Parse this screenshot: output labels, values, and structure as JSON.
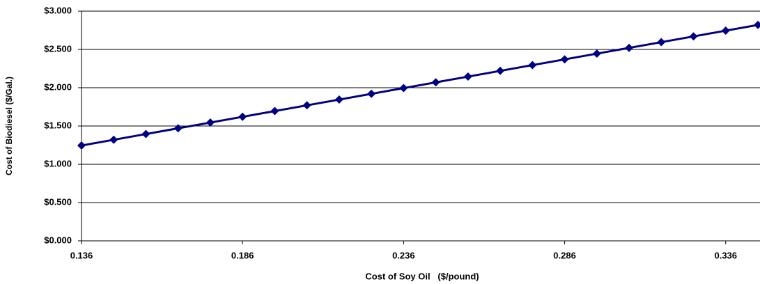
{
  "chart_data": {
    "type": "line",
    "x_label": "Cost of Soy Oil   ($/pound)",
    "y_label": "Cost of Biodiesel ($/Gal.)",
    "x": [
      0.136,
      0.146,
      0.156,
      0.166,
      0.176,
      0.186,
      0.196,
      0.206,
      0.216,
      0.226,
      0.236,
      0.246,
      0.256,
      0.266,
      0.276,
      0.286,
      0.296,
      0.306,
      0.316,
      0.326,
      0.336,
      0.346
    ],
    "values": [
      1.245,
      1.32,
      1.395,
      1.47,
      1.545,
      1.62,
      1.695,
      1.77,
      1.845,
      1.92,
      1.995,
      2.07,
      2.145,
      2.22,
      2.295,
      2.37,
      2.445,
      2.52,
      2.595,
      2.67,
      2.745,
      2.82
    ],
    "color": "#000080",
    "xlim": [
      0.136,
      0.346
    ],
    "xticks": [
      0.136,
      0.186,
      0.236,
      0.286,
      0.336
    ],
    "ylim": [
      0,
      3
    ],
    "yticks": [
      {
        "value": 0,
        "label": "$0.000"
      },
      {
        "value": 0.5,
        "label": "$0.500"
      },
      {
        "value": 1,
        "label": "$1.000"
      },
      {
        "value": 1.5,
        "label": "$1.500"
      },
      {
        "value": 2,
        "label": "$2.000"
      },
      {
        "value": 2.5,
        "label": "$2.500"
      },
      {
        "value": 3,
        "label": "$3.000"
      }
    ],
    "grid": true
  }
}
